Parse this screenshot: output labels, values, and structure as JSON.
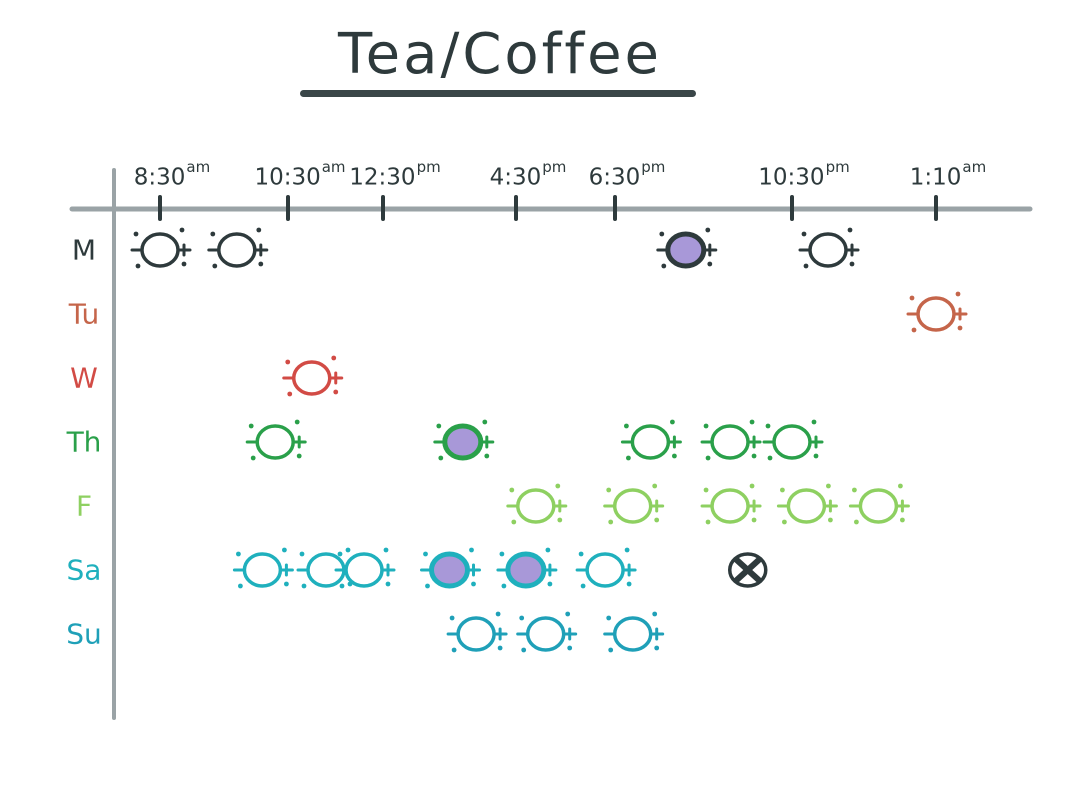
{
  "colors": {
    "axis": "#9aa3a6",
    "ink": "#2e3a3c",
    "caffeinated_fill": "#a898d8",
    "skipped": "#2e3a3c"
  },
  "chart_data": {
    "type": "scatter",
    "title": "Tea/Coffee",
    "xlabel": "",
    "ylabel": "",
    "grid": false,
    "legend": "none",
    "x_ticks": [
      {
        "time": "8:30",
        "suffix": "am"
      },
      {
        "time": "10:30",
        "suffix": "am"
      },
      {
        "time": "12:30",
        "suffix": "pm"
      },
      {
        "time": "4:30",
        "suffix": "pm"
      },
      {
        "time": "6:30",
        "suffix": "pm"
      },
      {
        "time": "10:30",
        "suffix": "pm"
      },
      {
        "time": "1:10",
        "suffix": "am"
      }
    ],
    "days": [
      {
        "label": "M",
        "color": "#2e3a3c"
      },
      {
        "label": "Tu",
        "color": "#c5654a"
      },
      {
        "label": "W",
        "color": "#d24b45"
      },
      {
        "label": "Th",
        "color": "#2aa04a"
      },
      {
        "label": "F",
        "color": "#8ed061"
      },
      {
        "label": "Sa",
        "color": "#1fb0bd"
      },
      {
        "label": "Su",
        "color": "#1fa0b8"
      }
    ],
    "points": [
      {
        "day": "M",
        "tick": 0.0,
        "kind": "open"
      },
      {
        "day": "M",
        "tick": 0.6,
        "kind": "open"
      },
      {
        "day": "M",
        "tick": 4.4,
        "kind": "filled"
      },
      {
        "day": "M",
        "tick": 5.25,
        "kind": "open"
      },
      {
        "day": "Tu",
        "tick": 6.0,
        "kind": "open"
      },
      {
        "day": "W",
        "tick": 1.25,
        "kind": "open"
      },
      {
        "day": "Th",
        "tick": 0.9,
        "kind": "open"
      },
      {
        "day": "Th",
        "tick": 2.6,
        "kind": "filled"
      },
      {
        "day": "Th",
        "tick": 4.2,
        "kind": "open"
      },
      {
        "day": "Th",
        "tick": 4.65,
        "kind": "open"
      },
      {
        "day": "Th",
        "tick": 5.0,
        "kind": "open"
      },
      {
        "day": "F",
        "tick": 3.2,
        "kind": "open"
      },
      {
        "day": "F",
        "tick": 4.1,
        "kind": "open"
      },
      {
        "day": "F",
        "tick": 4.65,
        "kind": "open"
      },
      {
        "day": "F",
        "tick": 5.1,
        "kind": "open"
      },
      {
        "day": "F",
        "tick": 5.6,
        "kind": "open"
      },
      {
        "day": "Sa",
        "tick": 0.8,
        "kind": "open"
      },
      {
        "day": "Sa",
        "tick": 1.4,
        "kind": "open"
      },
      {
        "day": "Sa",
        "tick": 1.8,
        "kind": "open"
      },
      {
        "day": "Sa",
        "tick": 2.5,
        "kind": "filled"
      },
      {
        "day": "Sa",
        "tick": 3.1,
        "kind": "filled"
      },
      {
        "day": "Sa",
        "tick": 3.9,
        "kind": "open"
      },
      {
        "day": "Sa",
        "tick": 4.75,
        "kind": "crossed"
      },
      {
        "day": "Su",
        "tick": 2.7,
        "kind": "open"
      },
      {
        "day": "Su",
        "tick": 3.3,
        "kind": "open"
      },
      {
        "day": "Su",
        "tick": 4.1,
        "kind": "open"
      }
    ]
  }
}
